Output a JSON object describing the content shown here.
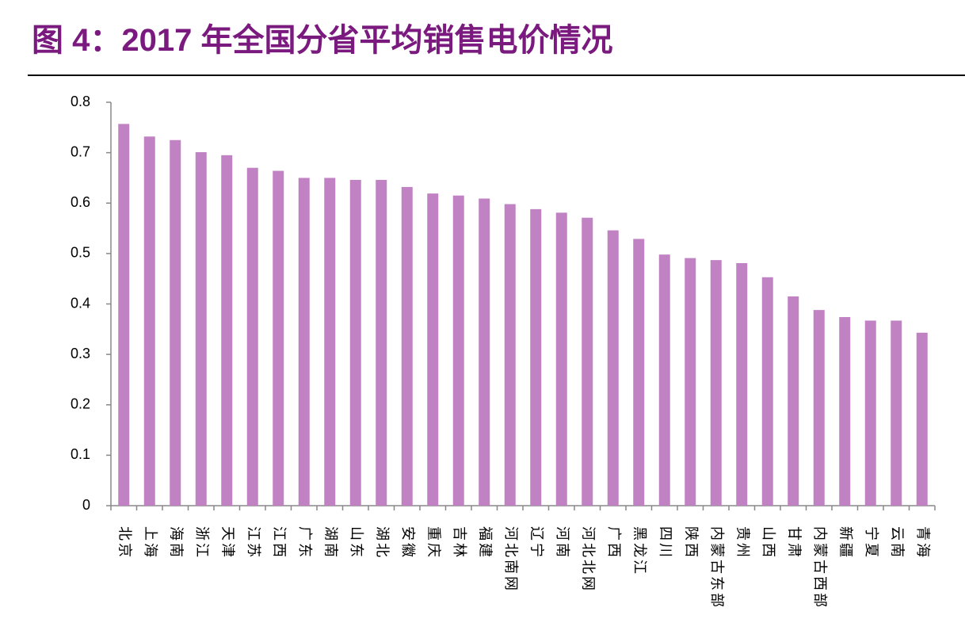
{
  "chart_data": {
    "type": "bar",
    "title": "图 4：2017 年全国分省平均销售电价情况",
    "categories": [
      "北京",
      "上海",
      "海南",
      "浙江",
      "天津",
      "江苏",
      "江西",
      "广东",
      "湖南",
      "山东",
      "湖北",
      "安徽",
      "重庆",
      "吉林",
      "福建",
      "河北南网",
      "辽宁",
      "河南",
      "河北北网",
      "广西",
      "黑龙江",
      "四川",
      "陕西",
      "内蒙古东部",
      "贵州",
      "山西",
      "甘肃",
      "内蒙古西部",
      "新疆",
      "宁夏",
      "云南",
      "青海"
    ],
    "values": [
      0.757,
      0.732,
      0.725,
      0.701,
      0.695,
      0.67,
      0.664,
      0.65,
      0.65,
      0.646,
      0.646,
      0.632,
      0.619,
      0.615,
      0.609,
      0.598,
      0.588,
      0.581,
      0.571,
      0.546,
      0.529,
      0.498,
      0.491,
      0.487,
      0.481,
      0.453,
      0.415,
      0.388,
      0.374,
      0.367,
      0.367,
      0.343
    ],
    "color": "#c182c4",
    "ylim": [
      0,
      0.8
    ],
    "yticks": [
      0,
      0.1,
      0.2,
      0.3,
      0.4,
      0.5,
      0.6,
      0.7,
      0.8
    ],
    "grid": false
  }
}
